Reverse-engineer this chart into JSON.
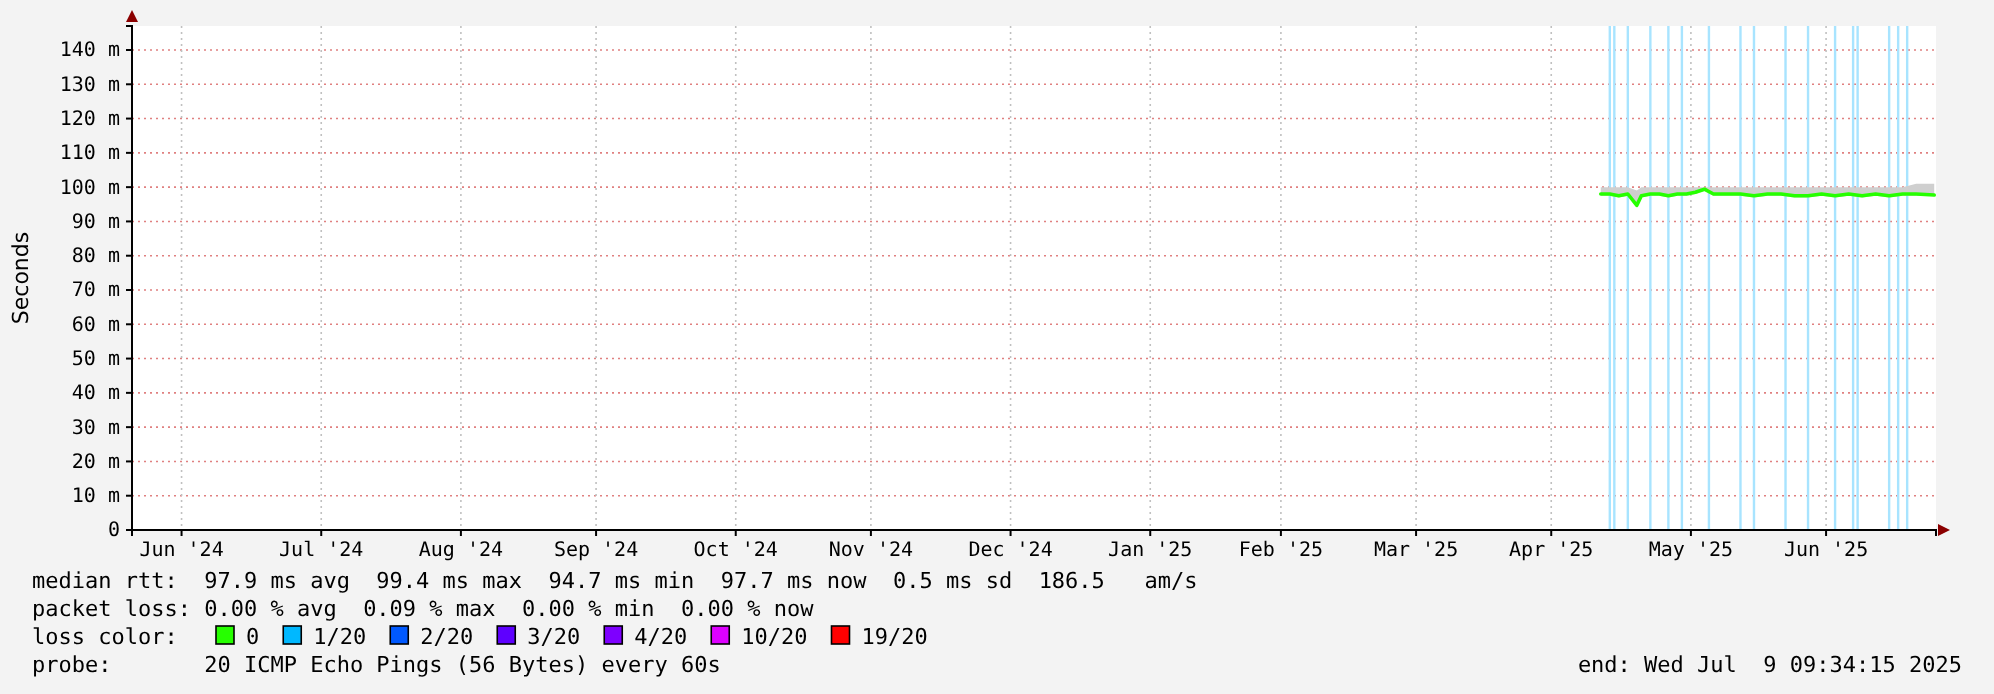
{
  "chart_data": {
    "type": "line",
    "ylabel": "Seconds",
    "x": [
      "2025-04-26",
      "2025-04-28",
      "2025-04-30",
      "2025-05-02",
      "2025-05-04",
      "2025-05-05",
      "2025-05-07",
      "2025-05-09",
      "2025-05-11",
      "2025-05-13",
      "2025-05-15",
      "2025-05-17",
      "2025-05-19",
      "2025-05-21",
      "2025-05-24",
      "2025-05-27",
      "2025-05-30",
      "2025-06-02",
      "2025-06-05",
      "2025-06-08",
      "2025-06-11",
      "2025-06-14",
      "2025-06-17",
      "2025-06-20",
      "2025-06-23",
      "2025-06-26",
      "2025-06-29",
      "2025-07-02",
      "2025-07-05",
      "2025-07-09"
    ],
    "xlim": [
      "2024-06-04T00:00",
      "2025-07-09T09:34"
    ],
    "xticks": [
      {
        "value": "2024-06-15",
        "label": "Jun '24"
      },
      {
        "value": "2024-07-16",
        "label": "Jul '24"
      },
      {
        "value": "2024-08-16",
        "label": "Aug '24"
      },
      {
        "value": "2024-09-15",
        "label": "Sep '24"
      },
      {
        "value": "2024-10-16",
        "label": "Oct '24"
      },
      {
        "value": "2024-11-15",
        "label": "Nov '24"
      },
      {
        "value": "2024-12-16",
        "label": "Dec '24"
      },
      {
        "value": "2025-01-16",
        "label": "Jan '25"
      },
      {
        "value": "2025-02-14",
        "label": "Feb '25"
      },
      {
        "value": "2025-03-16",
        "label": "Mar '25"
      },
      {
        "value": "2025-04-15",
        "label": "Apr '25"
      },
      {
        "value": "2025-05-16",
        "label": "May '25"
      },
      {
        "value": "2025-06-15",
        "label": "Jun '25"
      }
    ],
    "ylim": [
      0,
      147
    ],
    "yticks": [
      0,
      {
        "value": 10,
        "label": "10 m"
      },
      {
        "value": 20,
        "label": "20 m"
      },
      {
        "value": 30,
        "label": "30 m"
      },
      {
        "value": 40,
        "label": "40 m"
      },
      {
        "value": 50,
        "label": "50 m"
      },
      {
        "value": 60,
        "label": "60 m"
      },
      {
        "value": 70,
        "label": "70 m"
      },
      {
        "value": 80,
        "label": "80 m"
      },
      {
        "value": 90,
        "label": "90 m"
      },
      {
        "value": 100,
        "label": "100 m"
      },
      {
        "value": 110,
        "label": "110 m"
      },
      {
        "value": 120,
        "label": "120 m"
      },
      {
        "value": 130,
        "label": "130 m"
      },
      {
        "value": 140,
        "label": "140 m"
      }
    ],
    "grid": true,
    "legend": "bottom",
    "legend_title": "loss color:",
    "series": [
      {
        "name": "0",
        "color": "#26ff00",
        "values": [
          98,
          98,
          97.5,
          98,
          94.7,
          97.5,
          98,
          98,
          97.5,
          98,
          98,
          98.5,
          99.4,
          98,
          98,
          98,
          97.5,
          98,
          98,
          97.5,
          97.5,
          98,
          97.5,
          98,
          97.5,
          98,
          97.5,
          98,
          98,
          97.7
        ],
        "lower": [
          97.5,
          97.5,
          97,
          97.5,
          94.5,
          97,
          97.5,
          97.5,
          97,
          97.5,
          97.5,
          98,
          99,
          97.5,
          97.5,
          97.5,
          97,
          97.5,
          97.5,
          97,
          97,
          97.5,
          97,
          97.5,
          97,
          97.5,
          97,
          97.5,
          97.5,
          97.5
        ],
        "upper": [
          100,
          100,
          100,
          100,
          99,
          100,
          100,
          100,
          100,
          100,
          100,
          100,
          100,
          100,
          100,
          100,
          100,
          100,
          100,
          100,
          100,
          100,
          100,
          100,
          100,
          100,
          100,
          100,
          101,
          101
        ]
      },
      {
        "name": "1/20",
        "color": "#00b8ff",
        "values": [
          null,
          null,
          null,
          null,
          null,
          null,
          null,
          null,
          null,
          null,
          null,
          null,
          null,
          null,
          null,
          null,
          null,
          null,
          null,
          null,
          null,
          null,
          null,
          null,
          null,
          null,
          null,
          null,
          null,
          null
        ]
      },
      {
        "name": "2/20",
        "color": "#0059ff",
        "values": [
          null,
          null,
          null,
          null,
          null,
          null,
          null,
          null,
          null,
          null,
          null,
          null,
          null,
          null,
          null,
          null,
          null,
          null,
          null,
          null,
          null,
          null,
          null,
          null,
          null,
          null,
          null,
          null,
          null,
          null
        ]
      },
      {
        "name": "3/20",
        "color": "#5e00ff",
        "values": [
          null,
          null,
          null,
          null,
          null,
          null,
          null,
          null,
          null,
          null,
          null,
          null,
          null,
          null,
          null,
          null,
          null,
          null,
          null,
          null,
          null,
          null,
          null,
          null,
          null,
          null,
          null,
          null,
          null,
          null
        ]
      },
      {
        "name": "4/20",
        "color": "#7e00ff",
        "values": [
          null,
          null,
          null,
          null,
          null,
          null,
          null,
          null,
          null,
          null,
          null,
          null,
          null,
          null,
          null,
          null,
          null,
          null,
          null,
          null,
          null,
          null,
          null,
          null,
          null,
          null,
          null,
          null,
          null,
          null
        ]
      },
      {
        "name": "10/20",
        "color": "#dd00ff",
        "values": [
          null,
          null,
          null,
          null,
          null,
          null,
          null,
          null,
          null,
          null,
          null,
          null,
          null,
          null,
          null,
          null,
          null,
          null,
          null,
          null,
          null,
          null,
          null,
          null,
          null,
          null,
          null,
          null,
          null,
          null
        ]
      },
      {
        "name": "19/20",
        "color": "#ff0000",
        "values": [
          null,
          null,
          null,
          null,
          null,
          null,
          null,
          null,
          null,
          null,
          null,
          null,
          null,
          null,
          null,
          null,
          null,
          null,
          null,
          null,
          null,
          null,
          null,
          null,
          null,
          null,
          null,
          null,
          null,
          null
        ]
      }
    ],
    "ref_lines": [
      {
        "axis": "x",
        "value": "2025-04-28",
        "color": "#a8e4ff"
      },
      {
        "axis": "x",
        "value": "2025-04-29",
        "color": "#a8e4ff"
      },
      {
        "axis": "x",
        "value": "2025-05-02",
        "color": "#a8e4ff"
      },
      {
        "axis": "x",
        "value": "2025-05-07",
        "color": "#a8e4ff"
      },
      {
        "axis": "x",
        "value": "2025-05-11",
        "color": "#a8e4ff"
      },
      {
        "axis": "x",
        "value": "2025-05-14",
        "color": "#a8e4ff"
      },
      {
        "axis": "x",
        "value": "2025-05-20",
        "color": "#a8e4ff"
      },
      {
        "axis": "x",
        "value": "2025-05-27",
        "color": "#a8e4ff"
      },
      {
        "axis": "x",
        "value": "2025-05-30",
        "color": "#a8e4ff"
      },
      {
        "axis": "x",
        "value": "2025-06-06",
        "color": "#a8e4ff"
      },
      {
        "axis": "x",
        "value": "2025-06-11",
        "color": "#a8e4ff"
      },
      {
        "axis": "x",
        "value": "2025-06-17",
        "color": "#a8e4ff"
      },
      {
        "axis": "x",
        "value": "2025-06-21",
        "color": "#a8e4ff"
      },
      {
        "axis": "x",
        "value": "2025-06-22",
        "color": "#a8e4ff"
      },
      {
        "axis": "x",
        "value": "2025-06-29",
        "color": "#a8e4ff"
      },
      {
        "axis": "x",
        "value": "2025-07-01",
        "color": "#a8e4ff"
      },
      {
        "axis": "x",
        "value": "2025-07-03",
        "color": "#a8e4ff"
      }
    ],
    "annotations": [
      "median rtt:  97.9 ms avg  99.4 ms max  94.7 ms min  97.7 ms now  0.5 ms sd  186.5   am/s",
      "packet loss: 0.00 % avg  0.09 % max  0.00 % min  0.00 % now",
      "probe:       20 ICMP Echo Pings (56 Bytes) every 60s",
      "end: Wed Jul  9 09:34:15 2025"
    ]
  }
}
